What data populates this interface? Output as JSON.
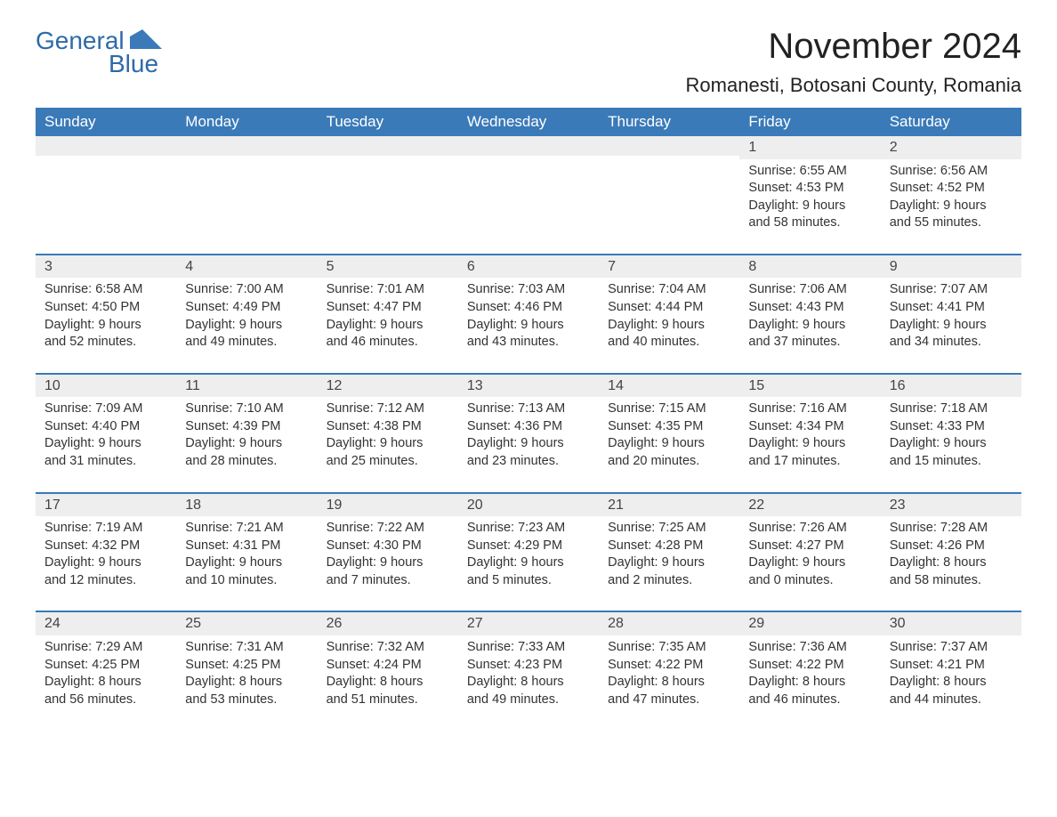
{
  "logo": {
    "text1": "General",
    "text2": "Blue"
  },
  "header": {
    "title": "November 2024",
    "location": "Romanesti, Botosani County, Romania"
  },
  "style": {
    "header_bg": "#3a7ab8",
    "header_text": "#ffffff",
    "daynum_bg": "#eeeeee",
    "row_border": "#3a7ab8",
    "body_text": "#333333",
    "title_fontsize": 40,
    "subtitle_fontsize": 22,
    "th_fontsize": 17,
    "cell_fontsize": 14.5
  },
  "columns": [
    "Sunday",
    "Monday",
    "Tuesday",
    "Wednesday",
    "Thursday",
    "Friday",
    "Saturday"
  ],
  "weeks": [
    [
      null,
      null,
      null,
      null,
      null,
      {
        "n": "1",
        "sr": "Sunrise: 6:55 AM",
        "ss": "Sunset: 4:53 PM",
        "d1": "Daylight: 9 hours",
        "d2": "and 58 minutes."
      },
      {
        "n": "2",
        "sr": "Sunrise: 6:56 AM",
        "ss": "Sunset: 4:52 PM",
        "d1": "Daylight: 9 hours",
        "d2": "and 55 minutes."
      }
    ],
    [
      {
        "n": "3",
        "sr": "Sunrise: 6:58 AM",
        "ss": "Sunset: 4:50 PM",
        "d1": "Daylight: 9 hours",
        "d2": "and 52 minutes."
      },
      {
        "n": "4",
        "sr": "Sunrise: 7:00 AM",
        "ss": "Sunset: 4:49 PM",
        "d1": "Daylight: 9 hours",
        "d2": "and 49 minutes."
      },
      {
        "n": "5",
        "sr": "Sunrise: 7:01 AM",
        "ss": "Sunset: 4:47 PM",
        "d1": "Daylight: 9 hours",
        "d2": "and 46 minutes."
      },
      {
        "n": "6",
        "sr": "Sunrise: 7:03 AM",
        "ss": "Sunset: 4:46 PM",
        "d1": "Daylight: 9 hours",
        "d2": "and 43 minutes."
      },
      {
        "n": "7",
        "sr": "Sunrise: 7:04 AM",
        "ss": "Sunset: 4:44 PM",
        "d1": "Daylight: 9 hours",
        "d2": "and 40 minutes."
      },
      {
        "n": "8",
        "sr": "Sunrise: 7:06 AM",
        "ss": "Sunset: 4:43 PM",
        "d1": "Daylight: 9 hours",
        "d2": "and 37 minutes."
      },
      {
        "n": "9",
        "sr": "Sunrise: 7:07 AM",
        "ss": "Sunset: 4:41 PM",
        "d1": "Daylight: 9 hours",
        "d2": "and 34 minutes."
      }
    ],
    [
      {
        "n": "10",
        "sr": "Sunrise: 7:09 AM",
        "ss": "Sunset: 4:40 PM",
        "d1": "Daylight: 9 hours",
        "d2": "and 31 minutes."
      },
      {
        "n": "11",
        "sr": "Sunrise: 7:10 AM",
        "ss": "Sunset: 4:39 PM",
        "d1": "Daylight: 9 hours",
        "d2": "and 28 minutes."
      },
      {
        "n": "12",
        "sr": "Sunrise: 7:12 AM",
        "ss": "Sunset: 4:38 PM",
        "d1": "Daylight: 9 hours",
        "d2": "and 25 minutes."
      },
      {
        "n": "13",
        "sr": "Sunrise: 7:13 AM",
        "ss": "Sunset: 4:36 PM",
        "d1": "Daylight: 9 hours",
        "d2": "and 23 minutes."
      },
      {
        "n": "14",
        "sr": "Sunrise: 7:15 AM",
        "ss": "Sunset: 4:35 PM",
        "d1": "Daylight: 9 hours",
        "d2": "and 20 minutes."
      },
      {
        "n": "15",
        "sr": "Sunrise: 7:16 AM",
        "ss": "Sunset: 4:34 PM",
        "d1": "Daylight: 9 hours",
        "d2": "and 17 minutes."
      },
      {
        "n": "16",
        "sr": "Sunrise: 7:18 AM",
        "ss": "Sunset: 4:33 PM",
        "d1": "Daylight: 9 hours",
        "d2": "and 15 minutes."
      }
    ],
    [
      {
        "n": "17",
        "sr": "Sunrise: 7:19 AM",
        "ss": "Sunset: 4:32 PM",
        "d1": "Daylight: 9 hours",
        "d2": "and 12 minutes."
      },
      {
        "n": "18",
        "sr": "Sunrise: 7:21 AM",
        "ss": "Sunset: 4:31 PM",
        "d1": "Daylight: 9 hours",
        "d2": "and 10 minutes."
      },
      {
        "n": "19",
        "sr": "Sunrise: 7:22 AM",
        "ss": "Sunset: 4:30 PM",
        "d1": "Daylight: 9 hours",
        "d2": "and 7 minutes."
      },
      {
        "n": "20",
        "sr": "Sunrise: 7:23 AM",
        "ss": "Sunset: 4:29 PM",
        "d1": "Daylight: 9 hours",
        "d2": "and 5 minutes."
      },
      {
        "n": "21",
        "sr": "Sunrise: 7:25 AM",
        "ss": "Sunset: 4:28 PM",
        "d1": "Daylight: 9 hours",
        "d2": "and 2 minutes."
      },
      {
        "n": "22",
        "sr": "Sunrise: 7:26 AM",
        "ss": "Sunset: 4:27 PM",
        "d1": "Daylight: 9 hours",
        "d2": "and 0 minutes."
      },
      {
        "n": "23",
        "sr": "Sunrise: 7:28 AM",
        "ss": "Sunset: 4:26 PM",
        "d1": "Daylight: 8 hours",
        "d2": "and 58 minutes."
      }
    ],
    [
      {
        "n": "24",
        "sr": "Sunrise: 7:29 AM",
        "ss": "Sunset: 4:25 PM",
        "d1": "Daylight: 8 hours",
        "d2": "and 56 minutes."
      },
      {
        "n": "25",
        "sr": "Sunrise: 7:31 AM",
        "ss": "Sunset: 4:25 PM",
        "d1": "Daylight: 8 hours",
        "d2": "and 53 minutes."
      },
      {
        "n": "26",
        "sr": "Sunrise: 7:32 AM",
        "ss": "Sunset: 4:24 PM",
        "d1": "Daylight: 8 hours",
        "d2": "and 51 minutes."
      },
      {
        "n": "27",
        "sr": "Sunrise: 7:33 AM",
        "ss": "Sunset: 4:23 PM",
        "d1": "Daylight: 8 hours",
        "d2": "and 49 minutes."
      },
      {
        "n": "28",
        "sr": "Sunrise: 7:35 AM",
        "ss": "Sunset: 4:22 PM",
        "d1": "Daylight: 8 hours",
        "d2": "and 47 minutes."
      },
      {
        "n": "29",
        "sr": "Sunrise: 7:36 AM",
        "ss": "Sunset: 4:22 PM",
        "d1": "Daylight: 8 hours",
        "d2": "and 46 minutes."
      },
      {
        "n": "30",
        "sr": "Sunrise: 7:37 AM",
        "ss": "Sunset: 4:21 PM",
        "d1": "Daylight: 8 hours",
        "d2": "and 44 minutes."
      }
    ]
  ]
}
